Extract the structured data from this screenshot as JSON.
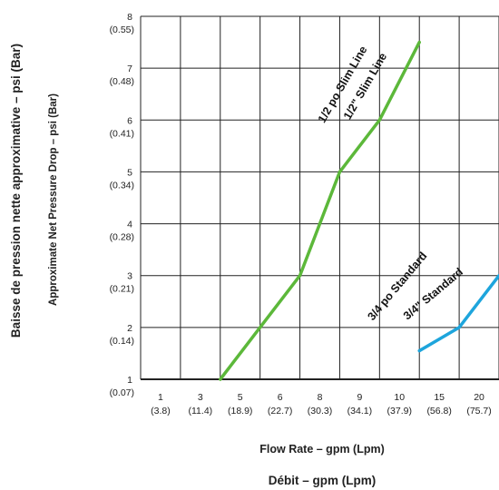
{
  "chart_data": {
    "type": "line",
    "categories": [
      "1",
      "3",
      "5",
      "6",
      "8",
      "9",
      "10",
      "15",
      "20"
    ],
    "categories_lpm": [
      "(3.8)",
      "(11.4)",
      "(18.9)",
      "(22.7)",
      "(30.3)",
      "(34.1)",
      "(37.9)",
      "(56.8)",
      "(75.7)"
    ],
    "y_ticks": [
      1,
      2,
      3,
      4,
      5,
      6,
      7,
      8
    ],
    "y_ticks_bar": [
      "(0.07)",
      "(0.14)",
      "(0.21)",
      "(0.28)",
      "(0.34)",
      "(0.41)",
      "(0.48)",
      "(0.55)"
    ],
    "ylim": [
      1,
      8
    ],
    "xlabel": "Flow Rate – gpm (Lpm)",
    "xlabel_fr": "Débit – gpm (Lpm)",
    "ylabel": "Approximate Net Pressure Drop – psi (Bar)",
    "ylabel_fr": "Baisse de pression nette approximative – psi (Bar)",
    "grid": true,
    "series": [
      {
        "name": "1/2\" Slim Line",
        "name_fr": "1/2 po Slim Line",
        "color": "#5cb83a",
        "x": [
          "3",
          "5",
          "6",
          "8",
          "9",
          "10"
        ],
        "values": [
          1.0,
          2.0,
          3.0,
          5.0,
          6.0,
          7.5
        ]
      },
      {
        "name": "3/4\" Standard",
        "name_fr": "3/4 po Standard",
        "color": "#1ea5dc",
        "x": [
          "10",
          "15",
          "20"
        ],
        "values": [
          1.55,
          2.0,
          3.0
        ]
      }
    ]
  }
}
